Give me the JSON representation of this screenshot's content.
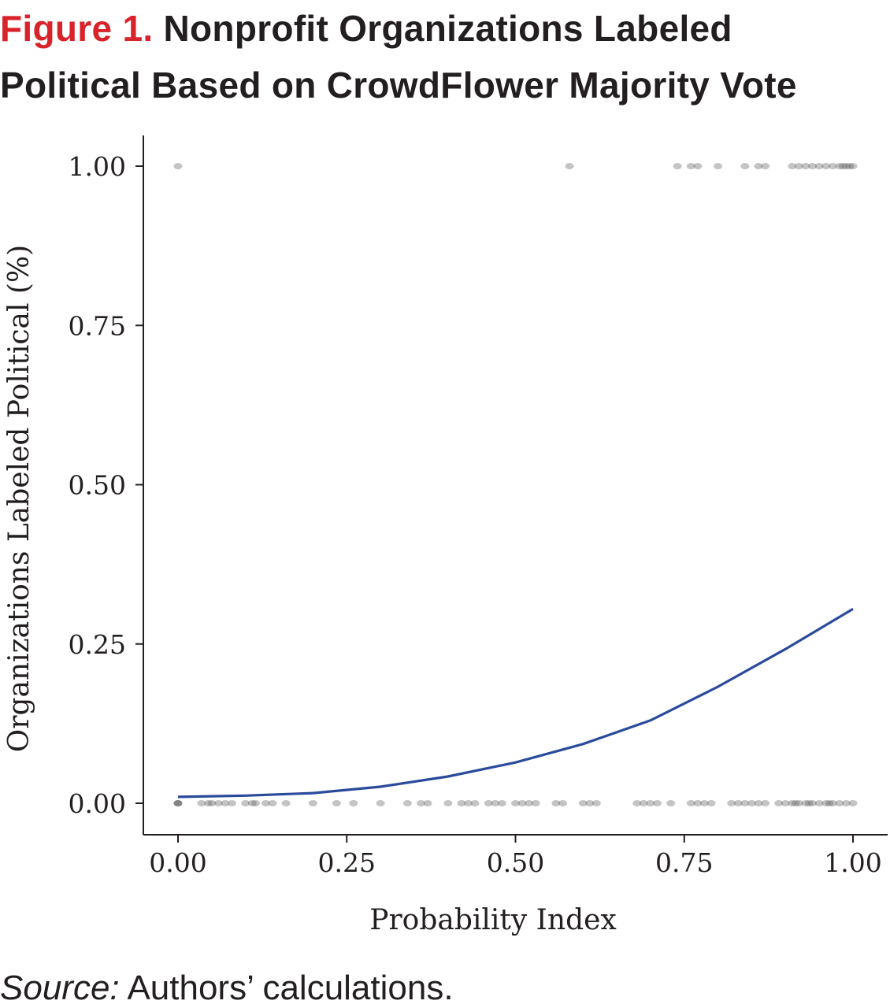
{
  "figure": {
    "label": "Figure 1.",
    "title_line1": "Nonprofit Organizations Labeled",
    "title_line2": "Political Based on CrowdFlower Majority Vote"
  },
  "source": {
    "label": "Source:",
    "text": "Authors’ calculations."
  },
  "colors": {
    "title_accent": "#d8232a",
    "curve": "#2a4a9c",
    "points": "#555555",
    "text": "#231f20"
  },
  "chart_data": {
    "type": "scatter",
    "xlabel": "Probability Index",
    "ylabel": "Organizations Labeled Political (%)",
    "xlim": [
      0,
      1
    ],
    "ylim": [
      0,
      1
    ],
    "x_ticks": [
      "0.00",
      "0.25",
      "0.50",
      "0.75",
      "1.00"
    ],
    "y_ticks": [
      "0.00",
      "0.25",
      "0.50",
      "0.75",
      "1.00"
    ],
    "grid": false,
    "legend": "none",
    "series": [
      {
        "kind": "points",
        "y": 1,
        "x": [
          0.0,
          0.58,
          0.74,
          0.76,
          0.77,
          0.8,
          0.84,
          0.86,
          0.87,
          0.91,
          0.92,
          0.93,
          0.94,
          0.95,
          0.96,
          0.97,
          0.98,
          0.985,
          0.99,
          0.995,
          1.0
        ]
      },
      {
        "kind": "points",
        "y": 0,
        "x": [
          0.0,
          0.0,
          0.0,
          0.035,
          0.045,
          0.05,
          0.06,
          0.07,
          0.08,
          0.1,
          0.11,
          0.115,
          0.13,
          0.14,
          0.16,
          0.2,
          0.235,
          0.26,
          0.3,
          0.34,
          0.36,
          0.37,
          0.4,
          0.42,
          0.43,
          0.44,
          0.46,
          0.47,
          0.48,
          0.5,
          0.51,
          0.52,
          0.53,
          0.56,
          0.57,
          0.6,
          0.61,
          0.62,
          0.68,
          0.69,
          0.7,
          0.71,
          0.73,
          0.76,
          0.77,
          0.78,
          0.79,
          0.82,
          0.83,
          0.84,
          0.85,
          0.86,
          0.87,
          0.89,
          0.9,
          0.91,
          0.915,
          0.92,
          0.93,
          0.935,
          0.94,
          0.95,
          0.96,
          0.965,
          0.97,
          0.98,
          0.99,
          1.0
        ]
      },
      {
        "kind": "curve",
        "x": [
          0.0,
          0.1,
          0.2,
          0.3,
          0.4,
          0.5,
          0.6,
          0.7,
          0.8,
          0.9,
          1.0
        ],
        "y": [
          0.01,
          0.012,
          0.016,
          0.026,
          0.042,
          0.064,
          0.093,
          0.13,
          0.183,
          0.242,
          0.305
        ]
      }
    ]
  }
}
